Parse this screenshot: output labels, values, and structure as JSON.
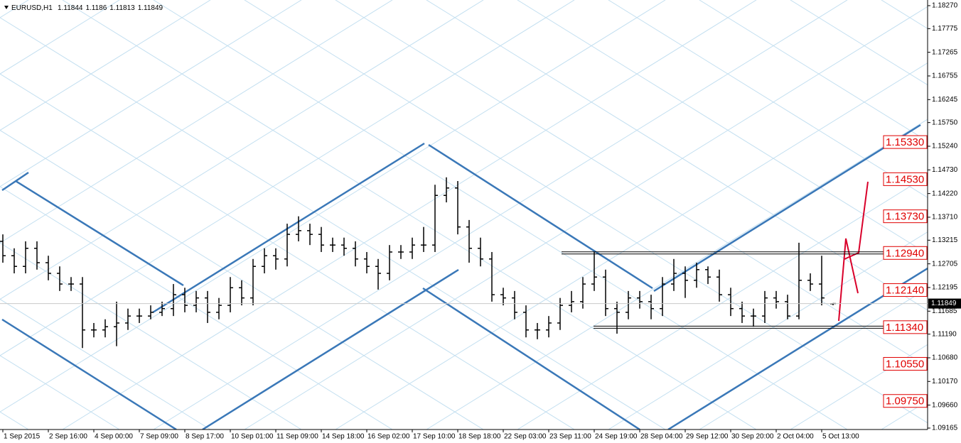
{
  "chart_data": {
    "type": "ohlc",
    "symbol": "EURUSD,H1",
    "color": "#000000",
    "open": [
      1.1319,
      1.1288,
      1.1265,
      1.1304,
      1.1273,
      1.125,
      1.1227,
      1.1227,
      1.1128,
      1.1128,
      1.1135,
      1.1143,
      1.1158,
      1.1158,
      1.1166,
      1.1174,
      1.1204,
      1.1181,
      1.1197,
      1.1166,
      1.1181,
      1.1219,
      1.1197,
      1.1265,
      1.1288,
      1.1281,
      1.1334,
      1.1342,
      1.1334,
      1.1311,
      1.1311,
      1.1304,
      1.1281,
      1.1265,
      1.125,
      1.1296,
      1.1296,
      1.1311,
      1.1311,
      1.1418,
      1.1434,
      1.135,
      1.1304,
      1.1281,
      1.1204,
      1.1197,
      1.1166,
      1.1128,
      1.1128,
      1.1143,
      1.1181,
      1.1189,
      1.1227,
      1.1242,
      1.1174,
      1.1166,
      1.1197,
      1.1189,
      1.1174,
      1.1227,
      1.125,
      1.1235,
      1.1258,
      1.1242,
      1.1204,
      1.1174,
      1.1158,
      1.1158,
      1.1197,
      1.1189,
      1.1158,
      1.1235,
      1.1227,
      1.11844
    ],
    "high": [
      1.1334,
      1.1304,
      1.1319,
      1.1319,
      1.1288,
      1.1265,
      1.1242,
      1.1242,
      1.1143,
      1.1151,
      1.1189,
      1.1174,
      1.1174,
      1.1181,
      1.1189,
      1.1227,
      1.1219,
      1.1212,
      1.1212,
      1.1197,
      1.1242,
      1.1235,
      1.1281,
      1.1304,
      1.1304,
      1.1357,
      1.1373,
      1.1357,
      1.135,
      1.1327,
      1.1327,
      1.1319,
      1.1296,
      1.1281,
      1.1311,
      1.1311,
      1.1327,
      1.135,
      1.1441,
      1.1457,
      1.1449,
      1.1365,
      1.1327,
      1.1296,
      1.1219,
      1.1212,
      1.1181,
      1.1143,
      1.1158,
      1.1197,
      1.1212,
      1.1242,
      1.1296,
      1.1258,
      1.1189,
      1.1212,
      1.1212,
      1.1204,
      1.1242,
      1.1281,
      1.1265,
      1.1273,
      1.1265,
      1.1258,
      1.1219,
      1.1189,
      1.1174,
      1.1212,
      1.1212,
      1.1204,
      1.1316,
      1.125,
      1.1288,
      1.1186
    ],
    "low": [
      1.1273,
      1.125,
      1.125,
      1.1258,
      1.1235,
      1.1212,
      1.1212,
      1.1089,
      1.1112,
      1.1112,
      1.1093,
      1.1128,
      1.1143,
      1.1151,
      1.1158,
      1.1158,
      1.1166,
      1.1166,
      1.1143,
      1.1151,
      1.1166,
      1.1181,
      1.1181,
      1.125,
      1.1258,
      1.1265,
      1.1319,
      1.1311,
      1.1296,
      1.1296,
      1.1288,
      1.1265,
      1.125,
      1.1215,
      1.1235,
      1.1281,
      1.1281,
      1.1296,
      1.1296,
      1.1403,
      1.1334,
      1.1273,
      1.1265,
      1.1189,
      1.1181,
      1.1151,
      1.1112,
      1.1108,
      1.1112,
      1.1128,
      1.1166,
      1.1174,
      1.1212,
      1.1158,
      1.112,
      1.1151,
      1.1174,
      1.1151,
      1.1158,
      1.1212,
      1.1197,
      1.1219,
      1.1227,
      1.1189,
      1.1158,
      1.1143,
      1.1135,
      1.1143,
      1.1174,
      1.1151,
      1.1151,
      1.1212,
      1.1181,
      1.11813
    ],
    "close": [
      1.1288,
      1.1265,
      1.1304,
      1.1273,
      1.125,
      1.1227,
      1.1227,
      1.1128,
      1.1128,
      1.1135,
      1.1143,
      1.1158,
      1.1158,
      1.1166,
      1.1174,
      1.1204,
      1.1181,
      1.1197,
      1.1166,
      1.1181,
      1.1219,
      1.1197,
      1.1265,
      1.1288,
      1.1281,
      1.1334,
      1.1342,
      1.1334,
      1.1311,
      1.1311,
      1.1304,
      1.1281,
      1.1265,
      1.125,
      1.1296,
      1.1296,
      1.1311,
      1.1311,
      1.1418,
      1.1434,
      1.135,
      1.1304,
      1.1281,
      1.1204,
      1.1197,
      1.1166,
      1.1128,
      1.1128,
      1.1143,
      1.1181,
      1.1189,
      1.1227,
      1.1242,
      1.1174,
      1.1166,
      1.1197,
      1.1189,
      1.1174,
      1.1227,
      1.125,
      1.1235,
      1.1258,
      1.1242,
      1.1204,
      1.1174,
      1.1158,
      1.1158,
      1.1197,
      1.1189,
      1.1158,
      1.1235,
      1.1227,
      1.1197,
      1.11849
    ],
    "xlim": [
      -0.25,
      81.3125
    ],
    "xticks": [
      {
        "value": 0,
        "label": "1 Sep 2015"
      },
      {
        "value": 4,
        "label": "2 Sep 16:00"
      },
      {
        "value": 8,
        "label": "4 Sep 00:00"
      },
      {
        "value": 12,
        "label": "7 Sep 09:00"
      },
      {
        "value": 16,
        "label": "8 Sep 17:00"
      },
      {
        "value": 20,
        "label": "10 Sep 01:00"
      },
      {
        "value": 24,
        "label": "11 Sep 09:00"
      },
      {
        "value": 28,
        "label": "14 Sep 18:00"
      },
      {
        "value": 32,
        "label": "16 Sep 02:00"
      },
      {
        "value": 36,
        "label": "17 Sep 10:00"
      },
      {
        "value": 40,
        "label": "18 Sep 18:00"
      },
      {
        "value": 44,
        "label": "22 Sep 03:00"
      },
      {
        "value": 48,
        "label": "23 Sep 11:00"
      },
      {
        "value": 52,
        "label": "24 Sep 19:00"
      },
      {
        "value": 56,
        "label": "28 Sep 04:00"
      },
      {
        "value": 60,
        "label": "29 Sep 12:00"
      },
      {
        "value": 64,
        "label": "30 Sep 20:00"
      },
      {
        "value": 68,
        "label": "2 Oct 04:00"
      },
      {
        "value": 72,
        "label": "5 Oct 13:00"
      }
    ],
    "ylim": [
      1.09134,
      1.18392
    ],
    "yticks": [
      {
        "value": 1.1827,
        "label": "1.18270"
      },
      1.17775,
      1.17265,
      1.16755,
      1.16245,
      {
        "value": 1.1575,
        "label": "1.15750"
      },
      {
        "value": 1.1524,
        "label": "1.15240"
      },
      {
        "value": 1.1473,
        "label": "1.14730"
      },
      {
        "value": 1.1422,
        "label": "1.14220"
      },
      {
        "value": 1.1371,
        "label": "1.13710"
      },
      1.13215,
      1.12705,
      1.12195,
      1.11685,
      {
        "value": 1.1119,
        "label": "1.11190"
      },
      {
        "value": 1.1068,
        "label": "1.10680"
      },
      {
        "value": 1.1017,
        "label": "1.10170"
      },
      {
        "value": 1.0966,
        "label": "1.09660"
      },
      1.09165
    ],
    "levels": [
      {
        "value": 1.1533,
        "label": "1.15330"
      },
      {
        "value": 1.1453,
        "label": "1.14530"
      },
      {
        "value": 1.1373,
        "label": "1.13730"
      },
      {
        "value": 1.1294,
        "label": "1.12940"
      },
      {
        "value": 1.1214,
        "label": "1.12140"
      },
      {
        "value": 1.1134,
        "label": "1.11340"
      },
      {
        "value": 1.1055,
        "label": "1.10550"
      },
      {
        "value": 1.0975,
        "label": "1.09750"
      }
    ],
    "level_color": "#e00000"
  }
}
